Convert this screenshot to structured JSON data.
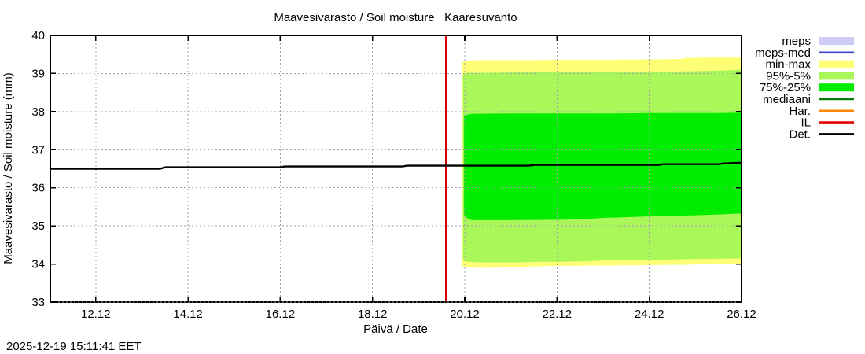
{
  "chart_data": {
    "type": "area",
    "title": "Maavesivarasto / Soil moisture   Kaaresuvanto",
    "xlabel": "Päivä / Date",
    "ylabel": "Maavesivarasto / Soil moisture (mm)",
    "timestamp": "2025-12-19 15:11:41 EET",
    "xlim": [
      11.015,
      26.0
    ],
    "ylim": [
      33,
      40
    ],
    "x_ticks": [
      {
        "day": 12,
        "label": "12.12"
      },
      {
        "day": 14,
        "label": "14.12"
      },
      {
        "day": 16,
        "label": "16.12"
      },
      {
        "day": 18,
        "label": "18.12"
      },
      {
        "day": 20,
        "label": "20.12"
      },
      {
        "day": 22,
        "label": "22.12"
      },
      {
        "day": 24,
        "label": "24.12"
      },
      {
        "day": 26,
        "label": "26.12"
      }
    ],
    "y_ticks": [
      {
        "value": 33,
        "label": "33"
      },
      {
        "value": 34,
        "label": "34"
      },
      {
        "value": 35,
        "label": "35"
      },
      {
        "value": 36,
        "label": "36"
      },
      {
        "value": 37,
        "label": "37"
      },
      {
        "value": 38,
        "label": "38"
      },
      {
        "value": 39,
        "label": "39"
      },
      {
        "value": 40,
        "label": "40"
      }
    ],
    "grid": {
      "x_days": [
        12,
        14,
        16,
        18,
        20,
        22,
        24
      ],
      "y_values": [
        33,
        34,
        35,
        36,
        37,
        38,
        39
      ]
    },
    "now_line": {
      "day": 19.59,
      "color": "#d80000"
    },
    "bands": [
      {
        "name": "min-max",
        "color": "#ffff75",
        "points": [
          [
            19.93,
            33.95,
            39.28
          ],
          [
            20.0,
            33.92,
            39.33
          ],
          [
            20.3,
            33.9,
            39.35
          ],
          [
            21.0,
            33.91,
            39.35
          ],
          [
            21.5,
            33.94,
            39.35
          ],
          [
            22.0,
            33.95,
            39.36
          ],
          [
            23.0,
            33.96,
            39.36
          ],
          [
            24.0,
            33.97,
            39.37
          ],
          [
            24.7,
            33.98,
            39.38
          ],
          [
            24.8,
            33.98,
            39.41
          ],
          [
            25.5,
            34.0,
            39.42
          ],
          [
            26.0,
            34.01,
            39.42
          ]
        ]
      },
      {
        "name": "95%-5%",
        "color": "#aaf75a",
        "points": [
          [
            19.96,
            34.1,
            38.98
          ],
          [
            20.05,
            34.06,
            39.02
          ],
          [
            20.5,
            34.04,
            39.02
          ],
          [
            21.0,
            34.04,
            39.03
          ],
          [
            21.6,
            34.06,
            39.03
          ],
          [
            22.0,
            34.06,
            39.03
          ],
          [
            22.6,
            34.07,
            39.04
          ],
          [
            23.0,
            34.09,
            39.04
          ],
          [
            23.5,
            34.11,
            39.05
          ],
          [
            24.5,
            34.12,
            39.05
          ],
          [
            25.0,
            34.13,
            39.06
          ],
          [
            25.6,
            34.14,
            39.08
          ],
          [
            26.0,
            34.15,
            39.1
          ]
        ]
      },
      {
        "name": "75%-25%",
        "color": "#00ed00",
        "points": [
          [
            19.98,
            35.3,
            37.87
          ],
          [
            20.05,
            35.2,
            37.92
          ],
          [
            20.15,
            35.15,
            37.94
          ],
          [
            21.0,
            35.15,
            37.95
          ],
          [
            22.0,
            35.16,
            37.95
          ],
          [
            22.5,
            35.17,
            37.95
          ],
          [
            23.0,
            35.21,
            37.95
          ],
          [
            23.3,
            35.22,
            37.95
          ],
          [
            24.0,
            35.25,
            37.96
          ],
          [
            25.0,
            35.28,
            37.96
          ],
          [
            25.5,
            35.3,
            37.96
          ],
          [
            26.0,
            35.33,
            37.97
          ]
        ]
      }
    ],
    "det_line": {
      "name": "Det.",
      "color": "#000000",
      "points": [
        [
          11.015,
          36.5
        ],
        [
          13.4,
          36.5
        ],
        [
          13.5,
          36.54
        ],
        [
          16.0,
          36.54
        ],
        [
          16.1,
          36.56
        ],
        [
          18.65,
          36.56
        ],
        [
          18.75,
          36.58
        ],
        [
          21.4,
          36.58
        ],
        [
          21.5,
          36.6
        ],
        [
          24.2,
          36.6
        ],
        [
          24.3,
          36.62
        ],
        [
          25.5,
          36.62
        ],
        [
          25.6,
          36.64
        ],
        [
          26.0,
          36.66
        ]
      ]
    },
    "legend": [
      {
        "label": "meps",
        "type": "band",
        "color": "#ccccf4"
      },
      {
        "label": "meps-med",
        "type": "line",
        "color": "#4343cc"
      },
      {
        "label": "min-max",
        "type": "band",
        "color": "#ffff75"
      },
      {
        "label": "95%-5%",
        "type": "band",
        "color": "#aaf75a"
      },
      {
        "label": "75%-25%",
        "type": "band",
        "color": "#00ed00"
      },
      {
        "label": "mediaani",
        "type": "line",
        "color": "#067d06"
      },
      {
        "label": "Har.",
        "type": "line",
        "color": "#ff8708"
      },
      {
        "label": "IL",
        "type": "line",
        "color": "#e60000"
      },
      {
        "label": "Det.",
        "type": "line",
        "color": "#000000"
      }
    ],
    "colors": {
      "grid": "#a2a2b0",
      "frame": "#000000",
      "background": "#ffffff"
    }
  }
}
